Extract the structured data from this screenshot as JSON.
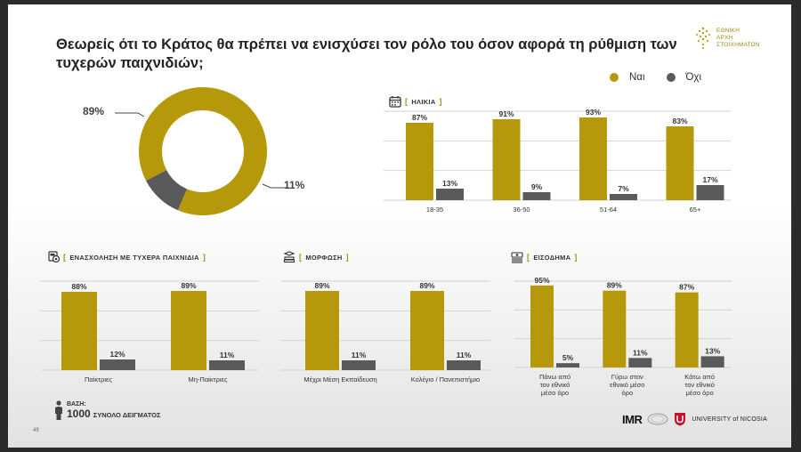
{
  "title": "Θεωρείς ότι το Κράτος θα πρέπει να ενισχύσει τον ρόλο του όσον αφορά τη ρύθμιση των τυχερών παιχνιδιών;",
  "logo_top_text": [
    "ΕΘΝΙΚΗ",
    "ΑΡΧΗ",
    "ΣΤΟΙΧΗΜΑΤΩΝ"
  ],
  "colors": {
    "yes": "#b5990a",
    "no": "#5a5a5a",
    "grid": "#d2d2d2"
  },
  "legend": {
    "yes": "Ναι",
    "no": "Όχι"
  },
  "base": {
    "label": "ΒΑΣΗ:",
    "number": "1000",
    "text": "ΣΥΝΟΛΟ ΔΕΙΓΜΑΤΟΣ"
  },
  "page_number": "49",
  "logos_bottom": {
    "imr": "IMR",
    "university": "UNIVERSITY of NICOSIA"
  },
  "chart_data": [
    {
      "type": "pie",
      "categories": [
        "Ναι",
        "Όχι"
      ],
      "values": [
        89,
        11
      ],
      "labels": [
        "89%",
        "11%"
      ]
    },
    {
      "type": "bar",
      "section": "ΗΛΙΚΙΑ",
      "categories": [
        "18-35",
        "36-50",
        "51-64",
        "65+"
      ],
      "series": [
        {
          "name": "Ναι",
          "values": [
            87,
            91,
            93,
            83
          ]
        },
        {
          "name": "Όχι",
          "values": [
            13,
            9,
            7,
            17
          ]
        }
      ]
    },
    {
      "type": "bar",
      "section": "ΕΝΑΣΧΟΛΗΣΗ ΜΕ ΤΥΧΕΡΑ ΠΑΙΧΝΙΔΙΑ",
      "categories": [
        "Παίκτριες",
        "Μη-Παίκτριες"
      ],
      "series": [
        {
          "name": "Ναι",
          "values": [
            88,
            89
          ]
        },
        {
          "name": "Όχι",
          "values": [
            12,
            11
          ]
        }
      ]
    },
    {
      "type": "bar",
      "section": "ΜΟΡΦΩΣΗ",
      "categories": [
        "Μέχρι Μέση Εκπαίδευση",
        "Κολέγιο / Πανεπιστήμιο"
      ],
      "series": [
        {
          "name": "Ναι",
          "values": [
            89,
            89
          ]
        },
        {
          "name": "Όχι",
          "values": [
            11,
            11
          ]
        }
      ]
    },
    {
      "type": "bar",
      "section": "ΕΙΣΟΔΗΜΑ",
      "categories": [
        [
          "Πάνω από",
          "τον εθνικό",
          "μέσο όρο"
        ],
        [
          "Γύρω στον",
          "εθνικό μέσο",
          "όρο"
        ],
        [
          "Κάτω από",
          "τον εθνικό",
          "μέσο όρο"
        ]
      ],
      "series": [
        {
          "name": "Ναι",
          "values": [
            95,
            89,
            87
          ]
        },
        {
          "name": "Όχι",
          "values": [
            5,
            11,
            13
          ]
        }
      ]
    }
  ]
}
